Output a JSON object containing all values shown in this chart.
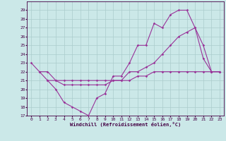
{
  "background_color": "#cbe8e8",
  "grid_color": "#aacccc",
  "line_color": "#993399",
  "xlim": [
    -0.5,
    23.5
  ],
  "ylim": [
    17,
    30
  ],
  "yticks": [
    17,
    18,
    19,
    20,
    21,
    22,
    23,
    24,
    25,
    26,
    27,
    28,
    29
  ],
  "xticks": [
    0,
    1,
    2,
    3,
    4,
    5,
    6,
    7,
    8,
    9,
    10,
    11,
    12,
    13,
    14,
    15,
    16,
    17,
    18,
    19,
    20,
    21,
    22,
    23
  ],
  "xlabel": "Windchill (Refroidissement éolien,°C)",
  "line1_x": [
    0,
    1,
    2,
    3,
    4,
    5,
    6,
    7,
    8,
    9,
    10,
    11,
    12,
    13,
    14,
    15,
    16,
    17,
    18,
    19,
    20,
    21,
    22,
    23
  ],
  "line1_y": [
    23,
    22,
    21,
    20,
    18.5,
    18,
    17.5,
    17,
    19,
    19.5,
    21.5,
    21.5,
    23,
    25,
    25,
    27.5,
    27,
    28.5,
    29,
    29,
    27,
    23.5,
    22,
    22
  ],
  "line2_x": [
    1,
    2,
    3,
    4,
    5,
    6,
    7,
    8,
    9,
    10,
    11,
    12,
    13,
    14,
    15,
    16,
    17,
    18,
    19,
    20,
    21,
    22,
    23
  ],
  "line2_y": [
    22,
    22,
    21,
    21,
    21,
    21,
    21,
    21,
    21,
    21,
    21,
    21,
    21.5,
    21.5,
    22,
    22,
    22,
    22,
    22,
    22,
    22,
    22,
    22
  ],
  "line3_x": [
    2,
    3,
    4,
    5,
    6,
    7,
    8,
    9,
    10,
    11,
    12,
    13,
    14,
    15,
    16,
    17,
    18,
    19,
    20,
    21,
    22,
    23
  ],
  "line3_y": [
    21,
    21,
    20.5,
    20.5,
    20.5,
    20.5,
    20.5,
    20.5,
    21,
    21,
    22,
    22,
    22.5,
    23,
    24,
    25,
    26,
    26.5,
    27,
    25,
    22,
    22
  ]
}
